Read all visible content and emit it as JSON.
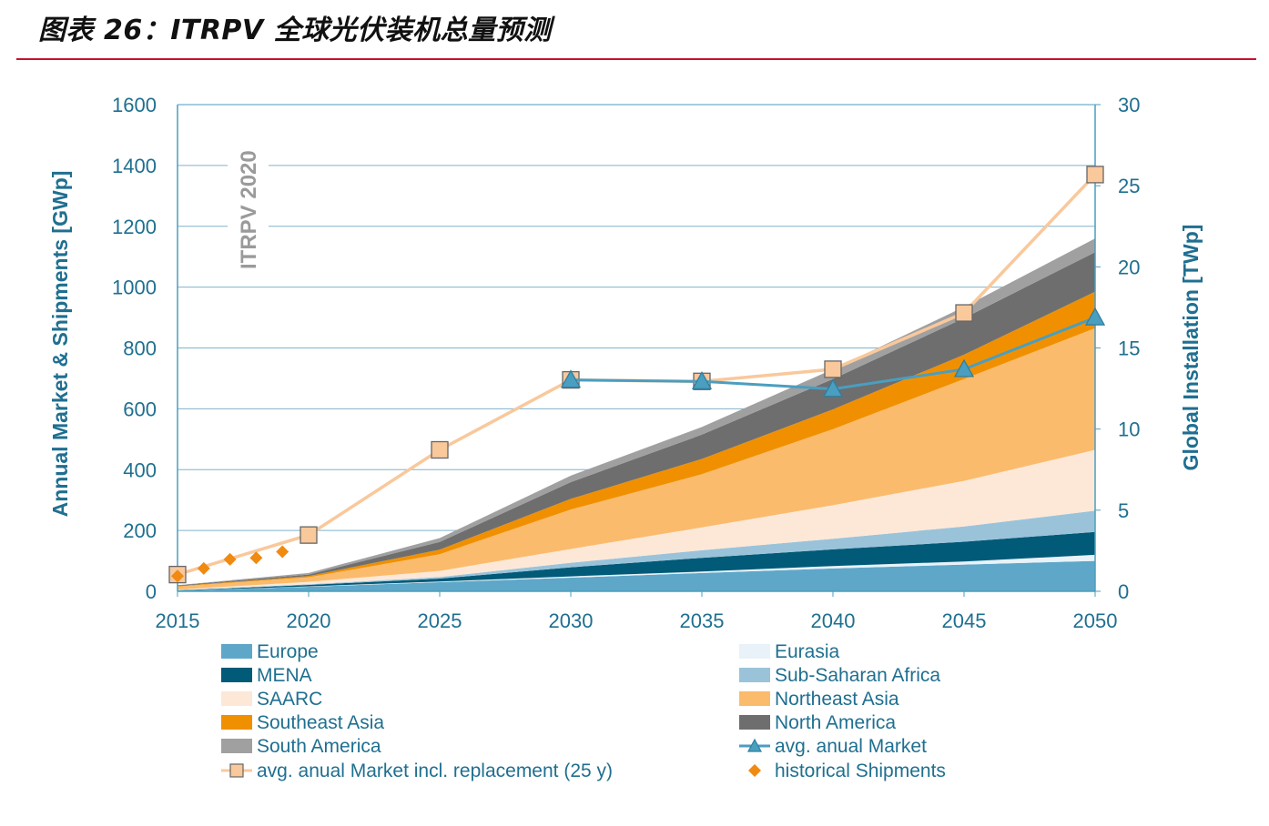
{
  "figure": {
    "title": "图表 26：ITRPV 全球光伏装机总量预测"
  },
  "chart_data": {
    "type": "area",
    "watermark": "ITRPV 2020",
    "categories": [
      "2015",
      "2020",
      "2025",
      "2030",
      "2035",
      "2040",
      "2045",
      "2050"
    ],
    "x": [
      2015,
      2020,
      2025,
      2030,
      2035,
      2040,
      2045,
      2050
    ],
    "xlim": [
      2015,
      2050
    ],
    "ylabel_left": "Annual Market  & Shipments [GWp]",
    "ylabel_right": "Global Installation [TWp]",
    "ylim_left": [
      0,
      1600
    ],
    "ylim_right": [
      0,
      30
    ],
    "yticks_left": [
      "0",
      "200",
      "400",
      "600",
      "800",
      "1000",
      "1200",
      "1400",
      "1600"
    ],
    "yticks_right": [
      "0",
      "5",
      "10",
      "15",
      "20",
      "25",
      "30"
    ],
    "grid": true,
    "stacked_series": [
      {
        "name": "Europe",
        "color": "#5ea7c9",
        "values": [
          2,
          15,
          30,
          45,
          60,
          75,
          88,
          100
        ]
      },
      {
        "name": "Eurasia",
        "color": "#e8f2f8",
        "values": [
          0.3,
          1,
          2,
          4,
          5,
          8,
          10,
          20
        ]
      },
      {
        "name": "MENA",
        "color": "#005a78",
        "values": [
          1,
          5,
          10,
          30,
          45,
          55,
          65,
          75
        ]
      },
      {
        "name": "Sub-Saharan Africa",
        "color": "#9ac3da",
        "values": [
          0.5,
          2,
          5,
          15,
          25,
          35,
          50,
          70
        ]
      },
      {
        "name": "SAARC",
        "color": "#fde8d8",
        "values": [
          2,
          8,
          20,
          45,
          75,
          110,
          150,
          200
        ]
      },
      {
        "name": "Northeast Asia",
        "color": "#fbbb6c",
        "values": [
          10,
          15,
          55,
          130,
          175,
          250,
          335,
          400
        ]
      },
      {
        "name": "Southeast Asia",
        "color": "#f09000",
        "values": [
          1.5,
          4,
          15,
          35,
          50,
          65,
          80,
          120
        ]
      },
      {
        "name": "North America",
        "color": "#6e6e6e",
        "values": [
          2,
          5,
          25,
          55,
          80,
          100,
          120,
          130
        ]
      },
      {
        "name": "South America",
        "color": "#a0a0a0",
        "values": [
          0.7,
          5,
          13,
          21,
          25,
          32,
          37,
          45
        ]
      }
    ],
    "line_series": [
      {
        "name": "avg. anual Market incl. replacement (25 y)",
        "axis": "left",
        "marker": "square",
        "color": "#f9c89b",
        "x": [
          2015,
          2020,
          2025,
          2030,
          2035,
          2040,
          2045,
          2050
        ],
        "values": [
          55,
          185,
          465,
          695,
          690,
          730,
          915,
          1370
        ]
      },
      {
        "name": "avg. anual Market",
        "axis": "left",
        "marker": "triangle",
        "color": "#4a9ec0",
        "x": [
          2030,
          2035,
          2040,
          2045,
          2050
        ],
        "values": [
          695,
          690,
          665,
          730,
          900
        ]
      },
      {
        "name": "historical Shipments",
        "axis": "left",
        "marker": "diamond",
        "color": "#f08a10",
        "x": [
          2015,
          2016,
          2017,
          2018,
          2019
        ],
        "values": [
          50,
          75,
          105,
          110,
          130
        ]
      }
    ]
  }
}
